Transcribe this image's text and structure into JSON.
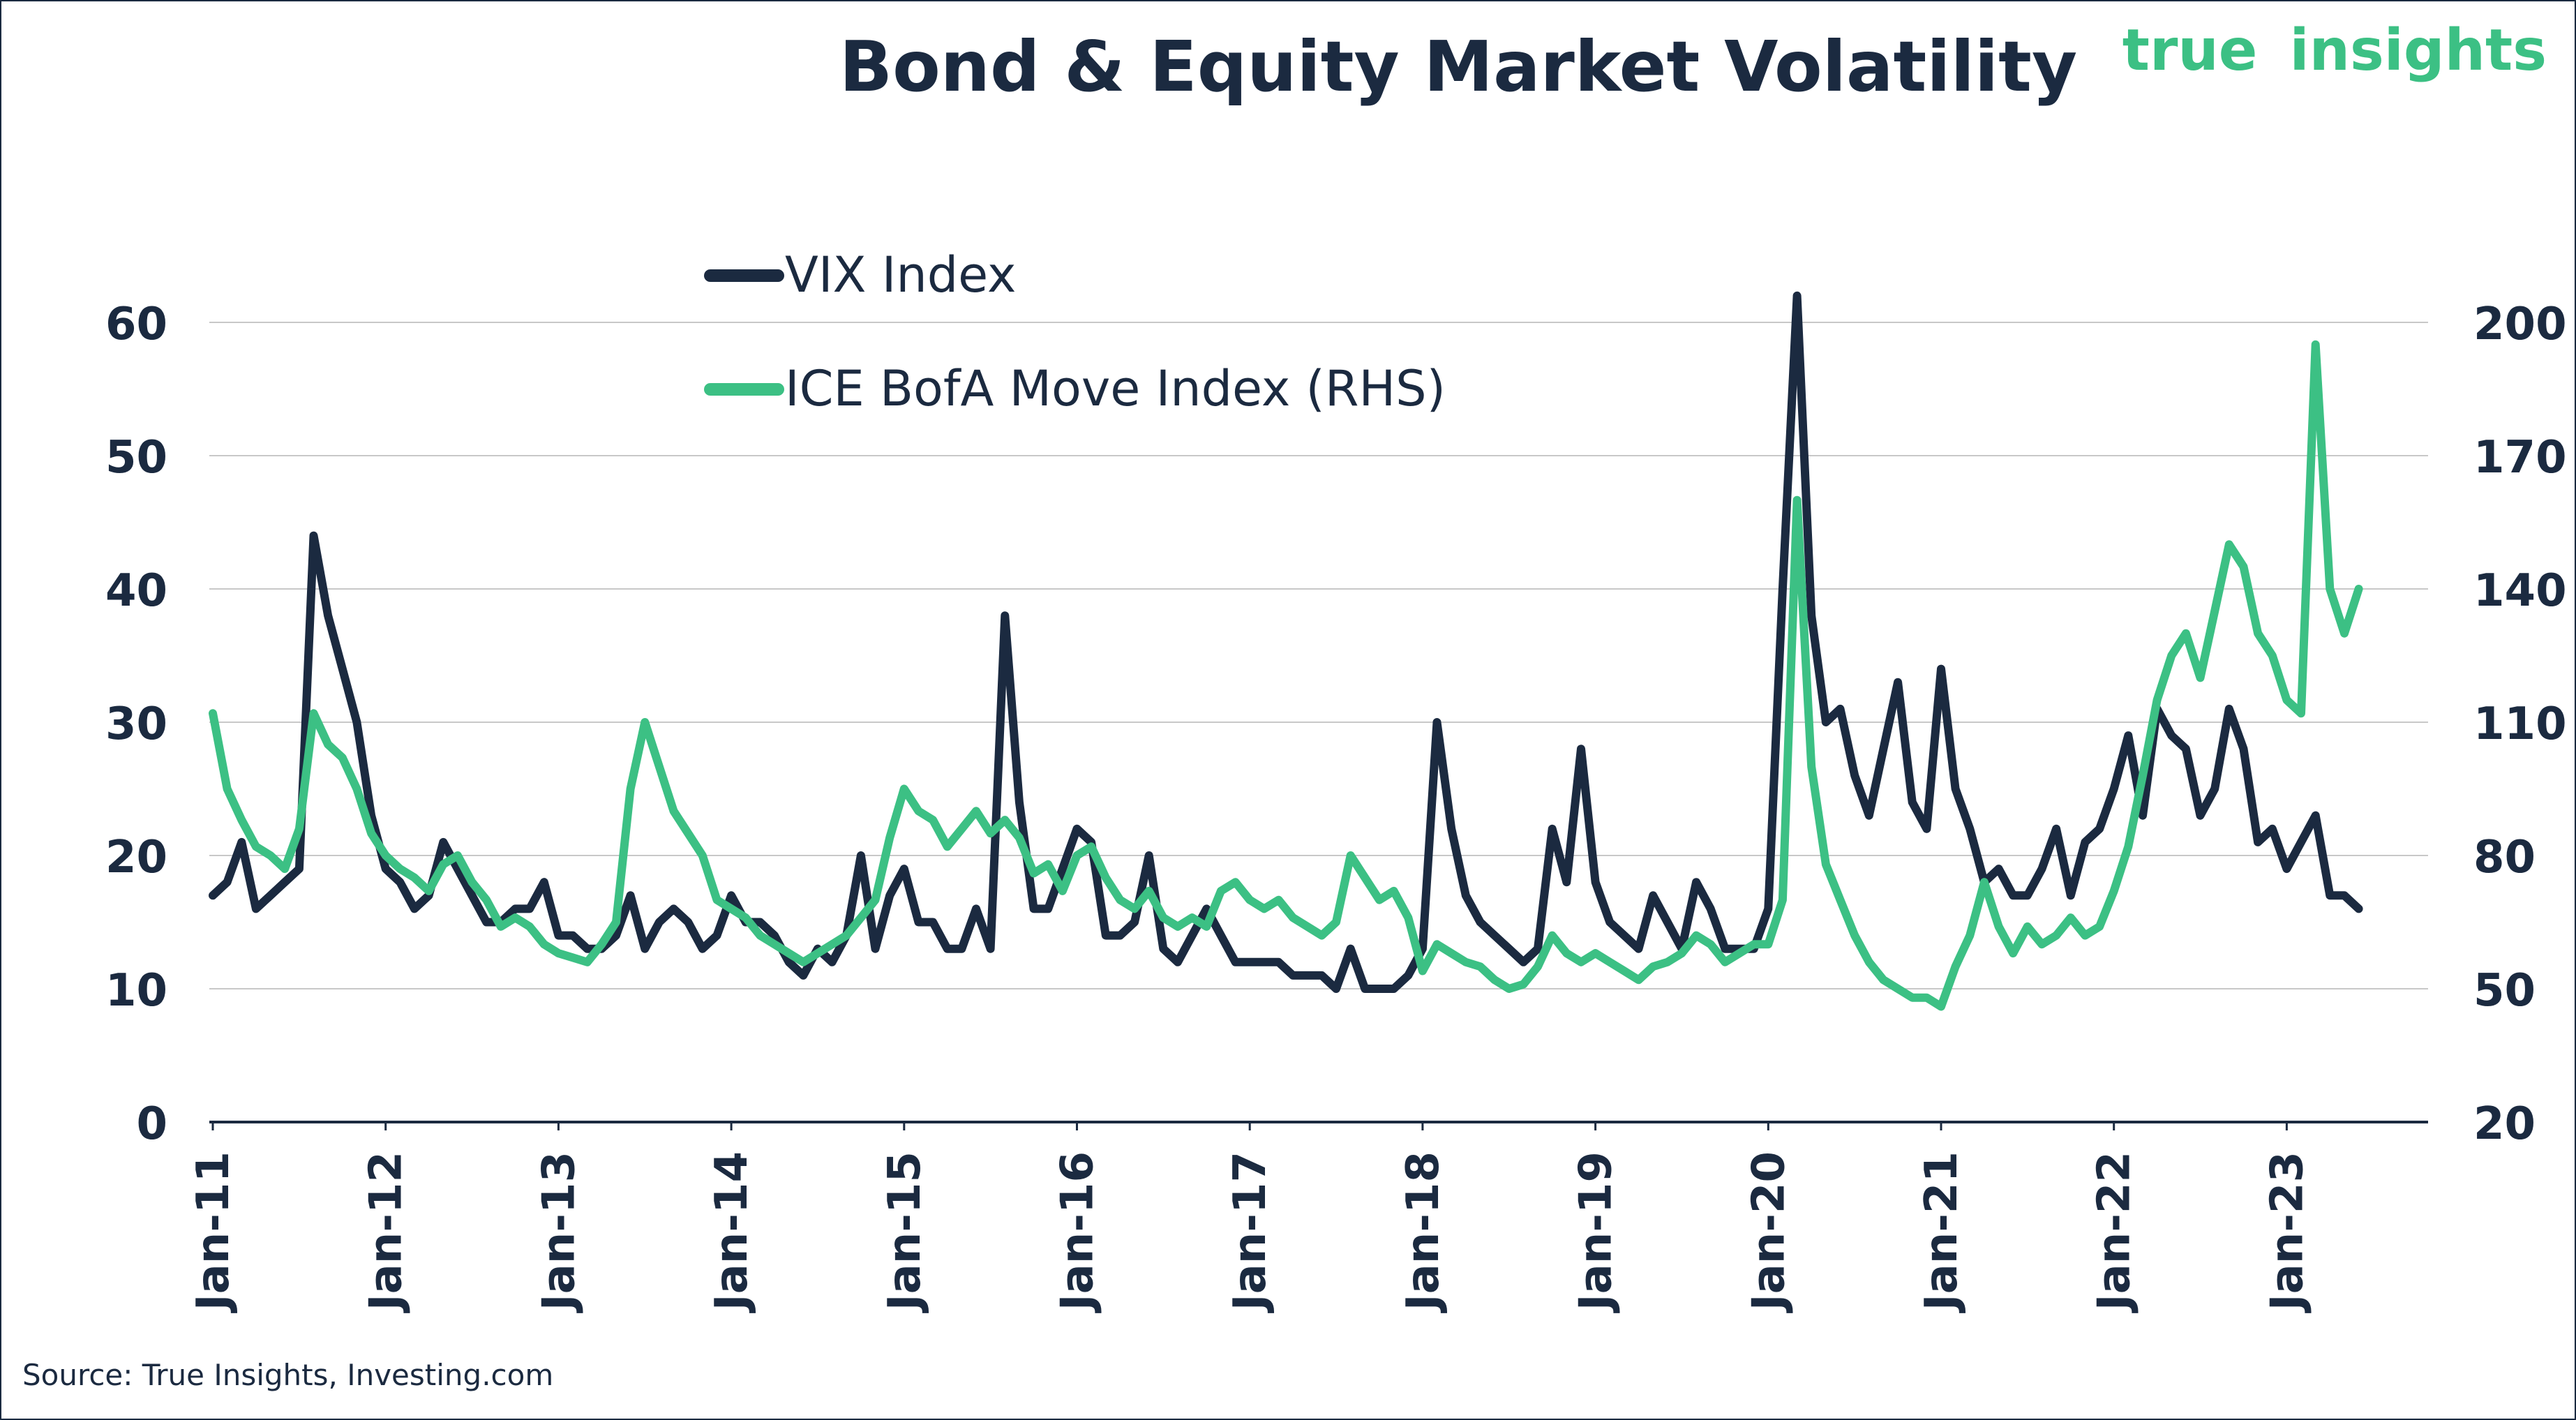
{
  "title": "Bond & Equity Market Volatility",
  "brand": {
    "word1": "true",
    "word2": "insights"
  },
  "source": "Source: True Insights, Investing.com",
  "colors": {
    "vix": "#1b2a40",
    "move": "#3cc084",
    "text": "#1b2a40",
    "grid": "#c8c8c8"
  },
  "chart_data": {
    "type": "line",
    "title": "Bond & Equity Market Volatility",
    "xlabel": "",
    "ylabel": "",
    "x_ticks": [
      "Jan-11",
      "Jan-12",
      "Jan-13",
      "Jan-14",
      "Jan-15",
      "Jan-16",
      "Jan-17",
      "Jan-18",
      "Jan-19",
      "Jan-20",
      "Jan-21",
      "Jan-22",
      "Jan-23"
    ],
    "y_left": {
      "min": 0,
      "max": 60,
      "ticks": [
        0,
        10,
        20,
        30,
        40,
        50,
        60
      ]
    },
    "y_right": {
      "min": 20,
      "max": 200,
      "ticks": [
        20,
        50,
        80,
        110,
        140,
        170,
        200
      ]
    },
    "grid": true,
    "legend_position": "top-left",
    "series": [
      {
        "name": "VIX Index",
        "axis": "left",
        "color": "#1b2a40",
        "x": [
          "2011-01",
          "2011-02",
          "2011-03",
          "2011-04",
          "2011-05",
          "2011-06",
          "2011-07",
          "2011-08",
          "2011-09",
          "2011-10",
          "2011-11",
          "2011-12",
          "2012-01",
          "2012-02",
          "2012-03",
          "2012-04",
          "2012-05",
          "2012-06",
          "2012-07",
          "2012-08",
          "2012-09",
          "2012-10",
          "2012-11",
          "2012-12",
          "2013-01",
          "2013-02",
          "2013-03",
          "2013-04",
          "2013-05",
          "2013-06",
          "2013-07",
          "2013-08",
          "2013-09",
          "2013-10",
          "2013-11",
          "2013-12",
          "2014-01",
          "2014-02",
          "2014-03",
          "2014-04",
          "2014-05",
          "2014-06",
          "2014-07",
          "2014-08",
          "2014-09",
          "2014-10",
          "2014-11",
          "2014-12",
          "2015-01",
          "2015-02",
          "2015-03",
          "2015-04",
          "2015-05",
          "2015-06",
          "2015-07",
          "2015-08",
          "2015-09",
          "2015-10",
          "2015-11",
          "2015-12",
          "2016-01",
          "2016-02",
          "2016-03",
          "2016-04",
          "2016-05",
          "2016-06",
          "2016-07",
          "2016-08",
          "2016-09",
          "2016-10",
          "2016-11",
          "2016-12",
          "2017-01",
          "2017-02",
          "2017-03",
          "2017-04",
          "2017-05",
          "2017-06",
          "2017-07",
          "2017-08",
          "2017-09",
          "2017-10",
          "2017-11",
          "2017-12",
          "2018-01",
          "2018-02",
          "2018-03",
          "2018-04",
          "2018-05",
          "2018-06",
          "2018-07",
          "2018-08",
          "2018-09",
          "2018-10",
          "2018-11",
          "2018-12",
          "2019-01",
          "2019-02",
          "2019-03",
          "2019-04",
          "2019-05",
          "2019-06",
          "2019-07",
          "2019-08",
          "2019-09",
          "2019-10",
          "2019-11",
          "2019-12",
          "2020-01",
          "2020-02",
          "2020-03",
          "2020-04",
          "2020-05",
          "2020-06",
          "2020-07",
          "2020-08",
          "2020-09",
          "2020-10",
          "2020-11",
          "2020-12",
          "2021-01",
          "2021-02",
          "2021-03",
          "2021-04",
          "2021-05",
          "2021-06",
          "2021-07",
          "2021-08",
          "2021-09",
          "2021-10",
          "2021-11",
          "2021-12",
          "2022-01",
          "2022-02",
          "2022-03",
          "2022-04",
          "2022-05",
          "2022-06",
          "2022-07",
          "2022-08",
          "2022-09",
          "2022-10",
          "2022-11",
          "2022-12",
          "2023-01",
          "2023-02",
          "2023-03",
          "2023-04",
          "2023-05",
          "2023-06"
        ],
        "values": [
          17,
          18,
          21,
          16,
          17,
          18,
          19,
          44,
          38,
          34,
          30,
          23,
          19,
          18,
          16,
          17,
          21,
          19,
          17,
          15,
          15,
          16,
          16,
          18,
          14,
          14,
          13,
          13,
          14,
          17,
          13,
          15,
          16,
          15,
          13,
          14,
          17,
          15,
          15,
          14,
          12,
          11,
          13,
          12,
          14,
          20,
          13,
          17,
          19,
          15,
          15,
          13,
          13,
          16,
          13,
          38,
          24,
          16,
          16,
          19,
          22,
          21,
          14,
          14,
          15,
          20,
          13,
          12,
          14,
          16,
          14,
          12,
          12,
          12,
          12,
          11,
          11,
          11,
          10,
          13,
          10,
          10,
          10,
          11,
          13,
          30,
          22,
          17,
          15,
          14,
          13,
          12,
          13,
          22,
          18,
          28,
          18,
          15,
          14,
          13,
          17,
          15,
          13,
          18,
          16,
          13,
          13,
          13,
          16,
          40,
          62,
          38,
          30,
          31,
          26,
          23,
          28,
          33,
          24,
          22,
          34,
          25,
          22,
          18,
          19,
          17,
          17,
          19,
          22,
          17,
          21,
          22,
          25,
          29,
          23,
          31,
          29,
          28,
          23,
          25,
          31,
          28,
          21,
          22,
          19,
          21,
          23,
          17,
          17,
          16
        ]
      },
      {
        "name": "ICE BofA Move Index (RHS)",
        "axis": "right",
        "color": "#3cc084",
        "x": [
          "2011-01",
          "2011-02",
          "2011-03",
          "2011-04",
          "2011-05",
          "2011-06",
          "2011-07",
          "2011-08",
          "2011-09",
          "2011-10",
          "2011-11",
          "2011-12",
          "2012-01",
          "2012-02",
          "2012-03",
          "2012-04",
          "2012-05",
          "2012-06",
          "2012-07",
          "2012-08",
          "2012-09",
          "2012-10",
          "2012-11",
          "2012-12",
          "2013-01",
          "2013-02",
          "2013-03",
          "2013-04",
          "2013-05",
          "2013-06",
          "2013-07",
          "2013-08",
          "2013-09",
          "2013-10",
          "2013-11",
          "2013-12",
          "2014-01",
          "2014-02",
          "2014-03",
          "2014-04",
          "2014-05",
          "2014-06",
          "2014-07",
          "2014-08",
          "2014-09",
          "2014-10",
          "2014-11",
          "2014-12",
          "2015-01",
          "2015-02",
          "2015-03",
          "2015-04",
          "2015-05",
          "2015-06",
          "2015-07",
          "2015-08",
          "2015-09",
          "2015-10",
          "2015-11",
          "2015-12",
          "2016-01",
          "2016-02",
          "2016-03",
          "2016-04",
          "2016-05",
          "2016-06",
          "2016-07",
          "2016-08",
          "2016-09",
          "2016-10",
          "2016-11",
          "2016-12",
          "2017-01",
          "2017-02",
          "2017-03",
          "2017-04",
          "2017-05",
          "2017-06",
          "2017-07",
          "2017-08",
          "2017-09",
          "2017-10",
          "2017-11",
          "2017-12",
          "2018-01",
          "2018-02",
          "2018-03",
          "2018-04",
          "2018-05",
          "2018-06",
          "2018-07",
          "2018-08",
          "2018-09",
          "2018-10",
          "2018-11",
          "2018-12",
          "2019-01",
          "2019-02",
          "2019-03",
          "2019-04",
          "2019-05",
          "2019-06",
          "2019-07",
          "2019-08",
          "2019-09",
          "2019-10",
          "2019-11",
          "2019-12",
          "2020-01",
          "2020-02",
          "2020-03",
          "2020-04",
          "2020-05",
          "2020-06",
          "2020-07",
          "2020-08",
          "2020-09",
          "2020-10",
          "2020-11",
          "2020-12",
          "2021-01",
          "2021-02",
          "2021-03",
          "2021-04",
          "2021-05",
          "2021-06",
          "2021-07",
          "2021-08",
          "2021-09",
          "2021-10",
          "2021-11",
          "2021-12",
          "2022-01",
          "2022-02",
          "2022-03",
          "2022-04",
          "2022-05",
          "2022-06",
          "2022-07",
          "2022-08",
          "2022-09",
          "2022-10",
          "2022-11",
          "2022-12",
          "2023-01",
          "2023-02",
          "2023-03",
          "2023-04",
          "2023-05",
          "2023-06"
        ],
        "values": [
          112,
          95,
          88,
          82,
          80,
          77,
          86,
          112,
          105,
          102,
          95,
          85,
          80,
          77,
          75,
          72,
          78,
          80,
          74,
          70,
          64,
          66,
          64,
          60,
          58,
          57,
          56,
          60,
          65,
          95,
          110,
          100,
          90,
          85,
          80,
          70,
          68,
          66,
          62,
          60,
          58,
          56,
          58,
          60,
          62,
          66,
          70,
          84,
          95,
          90,
          88,
          82,
          86,
          90,
          85,
          88,
          84,
          76,
          78,
          72,
          80,
          82,
          75,
          70,
          68,
          72,
          66,
          64,
          66,
          64,
          72,
          74,
          70,
          68,
          70,
          66,
          64,
          62,
          65,
          80,
          75,
          70,
          72,
          66,
          54,
          60,
          58,
          56,
          55,
          52,
          50,
          51,
          55,
          62,
          58,
          56,
          58,
          56,
          54,
          52,
          55,
          56,
          58,
          62,
          60,
          56,
          58,
          60,
          60,
          70,
          160,
          100,
          78,
          70,
          62,
          56,
          52,
          50,
          48,
          48,
          46,
          55,
          62,
          74,
          64,
          58,
          64,
          60,
          62,
          66,
          62,
          64,
          72,
          82,
          98,
          115,
          125,
          130,
          120,
          135,
          150,
          145,
          130,
          125,
          115,
          112,
          195,
          140,
          130,
          140
        ]
      }
    ]
  }
}
